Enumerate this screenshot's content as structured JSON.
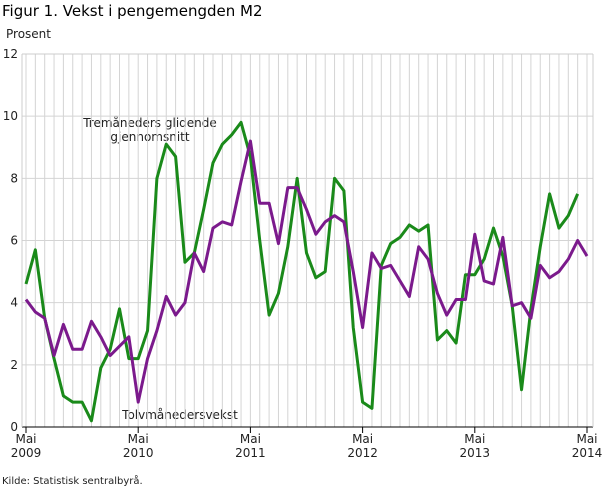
{
  "chart_data": {
    "type": "line",
    "title": "Figur 1. Vekst i pengemengden M2",
    "y_label": "Prosent",
    "source": "Kilde: Statistisk sentralbyrå.",
    "annotations": [
      "Tremåneders glidende",
      "gjennomsnitt",
      "Tolvmånedersvekst"
    ],
    "categories": [
      "Mai 2009",
      null,
      null,
      null,
      null,
      null,
      null,
      null,
      null,
      null,
      null,
      null,
      "Mai 2010",
      null,
      null,
      null,
      null,
      null,
      null,
      null,
      null,
      null,
      null,
      null,
      "Mai 2011",
      null,
      null,
      null,
      null,
      null,
      null,
      null,
      null,
      null,
      null,
      null,
      "Mai 2012",
      null,
      null,
      null,
      null,
      null,
      null,
      null,
      null,
      null,
      null,
      null,
      "Mai 2013",
      null,
      null,
      null,
      null,
      null,
      null,
      null,
      null,
      null,
      null,
      null,
      "Mai 2014"
    ],
    "series": [
      {
        "color": "#1a8a1a",
        "values": [
          4.6,
          5.7,
          3.5,
          2.2,
          1.0,
          0.8,
          0.8,
          0.2,
          1.9,
          2.5,
          3.8,
          2.2,
          2.2,
          3.1,
          8.0,
          9.1,
          8.7,
          5.3,
          5.6,
          7.0,
          8.5,
          9.1,
          9.4,
          9.8,
          8.7,
          6.0,
          3.6,
          4.3,
          5.8,
          8.0,
          5.6,
          4.8,
          5.0,
          8.0,
          7.6,
          3.2,
          0.8,
          0.6,
          5.2,
          5.9,
          6.1,
          6.5,
          6.3,
          6.5,
          2.8,
          3.1,
          2.7,
          4.9,
          4.9,
          5.4,
          6.4,
          5.5,
          3.9,
          1.2,
          3.8,
          5.8,
          7.5,
          6.4,
          6.8,
          7.5,
          null
        ]
      },
      {
        "color": "#7b1a8c",
        "values": [
          4.1,
          3.7,
          3.5,
          2.3,
          3.3,
          2.5,
          2.5,
          3.4,
          2.9,
          2.3,
          2.6,
          2.9,
          0.8,
          2.2,
          3.1,
          4.2,
          3.6,
          4.0,
          5.6,
          5.0,
          6.4,
          6.6,
          6.5,
          7.9,
          9.2,
          7.2,
          7.2,
          5.9,
          7.7,
          7.7,
          7.0,
          6.2,
          6.6,
          6.8,
          6.6,
          5.0,
          3.2,
          5.6,
          5.1,
          5.2,
          4.7,
          4.2,
          5.8,
          5.4,
          4.3,
          3.6,
          4.1,
          4.1,
          6.2,
          4.7,
          4.6,
          6.1,
          3.9,
          4.0,
          3.5,
          5.2,
          4.8,
          5.0,
          5.4,
          6.0,
          5.5
        ]
      }
    ],
    "ylim": [
      0,
      12
    ],
    "yticks": [
      0,
      2,
      4,
      6,
      8,
      10,
      12
    ],
    "grid": true
  }
}
